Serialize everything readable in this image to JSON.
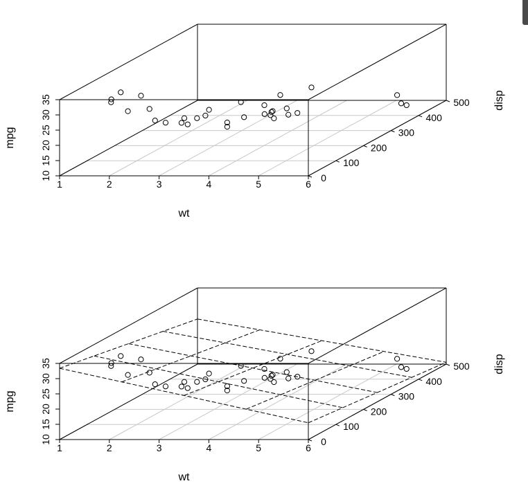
{
  "chart_data": [
    {
      "type": "scatter3d",
      "xlabel": "wt",
      "ylabel": "disp",
      "zlabel": "mpg",
      "xlim": [
        1,
        6
      ],
      "ylim": [
        0,
        500
      ],
      "zlim": [
        10,
        35
      ],
      "x_ticks": [
        "1",
        "2",
        "3",
        "4",
        "5",
        "6"
      ],
      "y_ticks": [
        "0",
        "100",
        "200",
        "300",
        "400",
        "500"
      ],
      "z_ticks": [
        "10",
        "15",
        "20",
        "25",
        "30",
        "35"
      ],
      "grid": true,
      "points": [
        {
          "x": 2.62,
          "y": 160,
          "z": 21.0
        },
        {
          "x": 2.875,
          "y": 160,
          "z": 21.0
        },
        {
          "x": 2.32,
          "y": 108,
          "z": 22.8
        },
        {
          "x": 3.215,
          "y": 258,
          "z": 21.4
        },
        {
          "x": 3.44,
          "y": 360,
          "z": 18.7
        },
        {
          "x": 3.46,
          "y": 225,
          "z": 18.1
        },
        {
          "x": 3.57,
          "y": 360,
          "z": 14.3
        },
        {
          "x": 3.19,
          "y": 146.7,
          "z": 24.4
        },
        {
          "x": 3.15,
          "y": 140.8,
          "z": 22.8
        },
        {
          "x": 3.44,
          "y": 167.6,
          "z": 19.2
        },
        {
          "x": 3.44,
          "y": 167.6,
          "z": 17.8
        },
        {
          "x": 4.07,
          "y": 275.8,
          "z": 16.4
        },
        {
          "x": 3.73,
          "y": 275.8,
          "z": 17.3
        },
        {
          "x": 3.78,
          "y": 275.8,
          "z": 15.2
        },
        {
          "x": 5.25,
          "y": 472,
          "z": 10.4
        },
        {
          "x": 5.424,
          "y": 460,
          "z": 10.4
        },
        {
          "x": 5.345,
          "y": 440,
          "z": 14.7
        },
        {
          "x": 2.2,
          "y": 78.7,
          "z": 32.4
        },
        {
          "x": 1.615,
          "y": 75.7,
          "z": 30.4
        },
        {
          "x": 1.835,
          "y": 71.1,
          "z": 33.9
        },
        {
          "x": 2.465,
          "y": 120.1,
          "z": 21.5
        },
        {
          "x": 3.52,
          "y": 318,
          "z": 15.5
        },
        {
          "x": 3.435,
          "y": 304,
          "z": 15.2
        },
        {
          "x": 3.84,
          "y": 350,
          "z": 13.3
        },
        {
          "x": 3.845,
          "y": 400,
          "z": 19.2
        },
        {
          "x": 1.935,
          "y": 79,
          "z": 27.3
        },
        {
          "x": 2.14,
          "y": 120.3,
          "z": 26.0
        },
        {
          "x": 1.513,
          "y": 95.1,
          "z": 30.4
        },
        {
          "x": 3.17,
          "y": 351,
          "z": 15.8
        },
        {
          "x": 2.77,
          "y": 145,
          "z": 19.7
        },
        {
          "x": 3.57,
          "y": 301,
          "z": 15.0
        },
        {
          "x": 2.78,
          "y": 121,
          "z": 21.4
        }
      ]
    },
    {
      "type": "scatter3d",
      "xlabel": "wt",
      "ylabel": "disp",
      "zlabel": "mpg",
      "xlim": [
        1,
        6
      ],
      "ylim": [
        0,
        500
      ],
      "zlim": [
        10,
        35
      ],
      "x_ticks": [
        "1",
        "2",
        "3",
        "4",
        "5",
        "6"
      ],
      "y_ticks": [
        "0",
        "100",
        "200",
        "300",
        "400",
        "500"
      ],
      "z_ticks": [
        "10",
        "15",
        "20",
        "25",
        "30",
        "35"
      ],
      "grid": true,
      "points": "same as first panel",
      "regression_plane": {
        "style": "dashed",
        "corners": [
          {
            "x": 1,
            "y": 0,
            "z": 33.4
          },
          {
            "x": 6,
            "y": 0,
            "z": 15.5
          },
          {
            "x": 1,
            "y": 500,
            "z": 24.8
          },
          {
            "x": 6,
            "y": 500,
            "z": 10.6
          }
        ]
      }
    }
  ]
}
